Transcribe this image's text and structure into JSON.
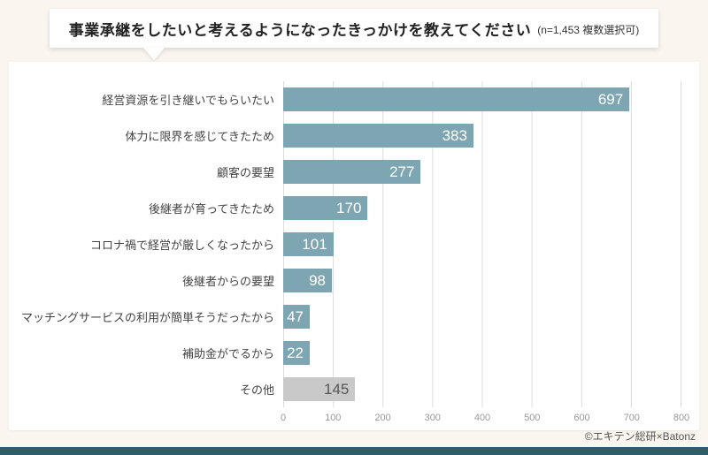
{
  "header": {
    "title": "事業承継をしたいと考えるようになったきっかけを教えてください",
    "subtitle": "(n=1,453 複数選択可)"
  },
  "footer": {
    "credit": "©エキテン総研×Batonz"
  },
  "colors": {
    "bar": "#7ea6b2",
    "bar_other": "#c9c9c9",
    "value_text": "#ffffff",
    "value_text_other": "#555555",
    "background": "#faf6ef",
    "bottom_bar": "#2f5d6e",
    "gridline": "#dcdcdc"
  },
  "chart_data": {
    "type": "bar",
    "orientation": "horizontal",
    "title": "事業承継をしたいと考えるようになったきっかけを教えてください (n=1,453 複数選択可)",
    "categories": [
      "経営資源を引き継いでもらいたい",
      "体力に限界を感じてきたため",
      "顧客の要望",
      "後継者が育ってきたため",
      "コロナ禍で経営が厳しくなったから",
      "後継者からの要望",
      "マッチングサービスの利用が簡単そうだったから",
      "補助金がでるから",
      "その他"
    ],
    "values": [
      697,
      383,
      277,
      170,
      101,
      98,
      47,
      22,
      145
    ],
    "other_index": 8,
    "xlim": [
      0,
      800
    ],
    "xticks": [
      0,
      100,
      200,
      300,
      400,
      500,
      600,
      700,
      800
    ],
    "xlabel": "",
    "ylabel": "",
    "grid": true,
    "legend": "none"
  }
}
